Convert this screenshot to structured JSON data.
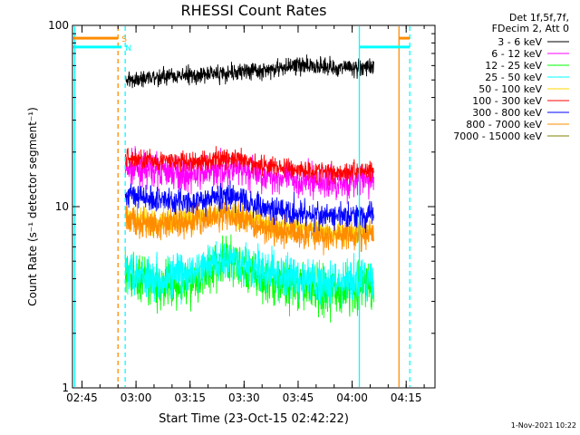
{
  "chart_data": {
    "type": "line",
    "title": "RHESSI Count Rates",
    "xlabel": "Start Time (23-Oct-15 02:42:22)",
    "ylabel": "Count Rate (s⁻¹ detector segment⁻¹)",
    "yscale": "log",
    "ylim": [
      1,
      100
    ],
    "xlim_minutes": [
      "02:42",
      "04:23"
    ],
    "x_ticks": [
      "02:45",
      "03:00",
      "03:15",
      "03:30",
      "03:45",
      "04:00",
      "04:15"
    ],
    "y_ticks": [
      "1",
      "10",
      "100"
    ],
    "grid": false,
    "legend_position": "right",
    "legend_header": [
      "Det 1f,5f,7f,",
      "FDecim 2, Att 0"
    ],
    "data_interval": [
      "02:57",
      "04:06"
    ],
    "series": [
      {
        "name": "3 - 6 keV",
        "color": "#000000",
        "x": [
          "02:57",
          "03:05",
          "03:15",
          "03:25",
          "03:35",
          "03:45",
          "03:55",
          "04:06"
        ],
        "values": [
          50,
          52,
          53,
          55,
          56,
          60,
          59,
          58
        ]
      },
      {
        "name": "6 - 12 keV",
        "color": "#ff00ff",
        "x": [
          "02:57",
          "03:05",
          "03:15",
          "03:25",
          "03:35",
          "03:45",
          "03:55",
          "04:06"
        ],
        "values": [
          16,
          16,
          15,
          16,
          15,
          14,
          13.5,
          14
        ]
      },
      {
        "name": "12 - 25 keV",
        "color": "#00ff00",
        "x": [
          "02:57",
          "03:05",
          "03:15",
          "03:25",
          "03:35",
          "03:45",
          "03:55",
          "04:06"
        ],
        "values": [
          4.3,
          3.6,
          3.8,
          5.0,
          4.0,
          3.6,
          3.4,
          3.7
        ]
      },
      {
        "name": "25 - 50 keV",
        "color": "#00ffff",
        "x": [
          "02:57",
          "03:05",
          "03:15",
          "03:25",
          "03:35",
          "03:45",
          "03:55",
          "04:06"
        ],
        "values": [
          4.6,
          4.0,
          4.2,
          5.3,
          4.4,
          4.0,
          3.8,
          4.0
        ]
      },
      {
        "name": "50 - 100 keV",
        "color": "#ffd700",
        "x": [
          "02:57",
          "03:05",
          "03:15",
          "03:25",
          "03:35",
          "03:45",
          "03:55",
          "04:06"
        ],
        "values": [
          8.8,
          8.2,
          8.6,
          9.5,
          8.2,
          7.6,
          7.2,
          7.4
        ]
      },
      {
        "name": "100 - 300 keV",
        "color": "#ff0000",
        "x": [
          "02:57",
          "03:05",
          "03:15",
          "03:25",
          "03:35",
          "03:45",
          "03:55",
          "04:06"
        ],
        "values": [
          18.5,
          18,
          17.5,
          18.5,
          17,
          16,
          15.5,
          16
        ]
      },
      {
        "name": "300 - 800 keV",
        "color": "#0000ff",
        "x": [
          "02:57",
          "03:05",
          "03:15",
          "03:25",
          "03:35",
          "03:45",
          "03:55",
          "04:06"
        ],
        "values": [
          12,
          11,
          10.5,
          11.5,
          10,
          9.2,
          8.8,
          9
        ]
      },
      {
        "name": "800 - 7000 keV",
        "color": "#ff8c00",
        "x": [
          "02:57",
          "03:05",
          "03:15",
          "03:25",
          "03:35",
          "03:45",
          "03:55",
          "04:06"
        ],
        "values": [
          8.5,
          7.8,
          8.3,
          9.0,
          7.8,
          7.2,
          6.8,
          7.0
        ]
      },
      {
        "name": "7000 - 15000 keV",
        "color": "#808000",
        "x": [],
        "values": []
      }
    ],
    "annotations": [
      {
        "label": "S",
        "color": "#ff8c00",
        "y": 85,
        "x_start": "02:42",
        "x_end": "02:55"
      },
      {
        "label": "N",
        "color": "#00ffff",
        "y": 76,
        "x_start": "02:42",
        "x_end": "02:56"
      },
      {
        "label": "",
        "color": "#ff8c00",
        "y": 85,
        "x_start": "04:13",
        "x_end": "04:16"
      },
      {
        "label": "",
        "color": "#00ffff",
        "y": 76,
        "x_start": "04:02",
        "x_end": "04:16"
      }
    ],
    "vertical_markers": [
      {
        "x": "02:43",
        "color": "#00ffff",
        "style": "solid"
      },
      {
        "x": "02:55",
        "color": "#ff8c00",
        "style": "dashed"
      },
      {
        "x": "02:57",
        "color": "#00ffff",
        "style": "dashed"
      },
      {
        "x": "04:02",
        "color": "#00ffff",
        "style": "solid"
      },
      {
        "x": "04:13",
        "color": "#ff8c00",
        "style": "solid"
      },
      {
        "x": "04:16",
        "color": "#00ffff",
        "style": "dashed"
      }
    ],
    "footer_date": "1-Nov-2021 10:22"
  }
}
